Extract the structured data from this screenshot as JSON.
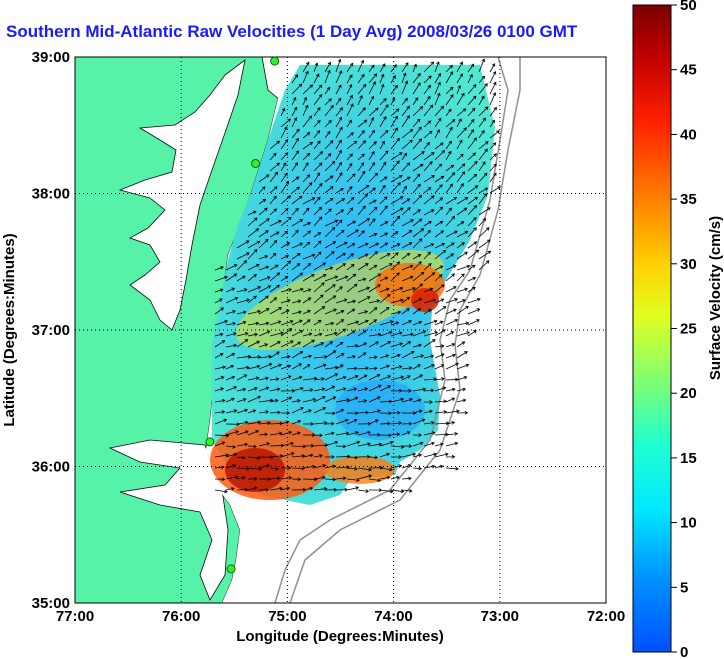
{
  "title": "Southern Mid-Atlantic Raw Velocities (1 Day Avg) 2008/03/26 0100 GMT",
  "x_axis": {
    "label": "Longitude (Degrees:Minutes)",
    "ticks": [
      "77:00",
      "76:00",
      "75:00",
      "74:00",
      "73:00",
      "72:00"
    ]
  },
  "y_axis": {
    "label": "Latitude (Degrees:Minutes)",
    "ticks": [
      "39:00",
      "38:00",
      "37:00",
      "36:00",
      "35:00"
    ]
  },
  "colorbar": {
    "label": "Surface Velocity (cm/s)",
    "min": 0,
    "max": 50,
    "ticks": [
      "50",
      "45",
      "40",
      "35",
      "30",
      "25",
      "20",
      "15",
      "10",
      "5",
      "0"
    ]
  },
  "colors": {
    "land": "#55f2a8",
    "water": "#ffffff",
    "title": "#1a1aff",
    "station": "#33ee33",
    "arrow": "#000000"
  },
  "map_extent": {
    "lon_min": -77,
    "lon_max": -72,
    "lat_min": 35,
    "lat_max": 39
  },
  "stations": [
    {
      "lon": -75.12,
      "lat": 38.97
    },
    {
      "lon": -75.3,
      "lat": 38.22
    },
    {
      "lon": -75.73,
      "lat": 36.18
    },
    {
      "lon": -75.53,
      "lat": 35.25
    }
  ]
}
